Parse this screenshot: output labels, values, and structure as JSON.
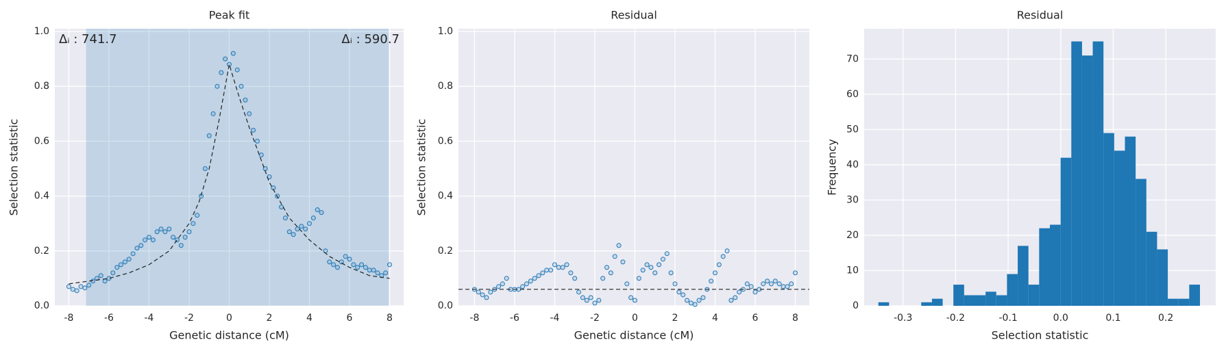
{
  "chart_data": [
    {
      "type": "scatter",
      "title": "Peak fit",
      "xlabel": "Genetic distance (cM)",
      "ylabel": "Selection statistic",
      "color": "#1f77b4",
      "xlim": [
        -8.7,
        8.7
      ],
      "ylim": [
        0,
        1.01
      ],
      "xticks": [
        -8,
        -6,
        -4,
        -2,
        0,
        2,
        4,
        6,
        8
      ],
      "yticks": [
        {
          "value": 0,
          "label": "0.0"
        },
        0.2,
        0.4,
        0.6,
        0.8,
        {
          "value": 1,
          "label": "1.0"
        }
      ],
      "grid": true,
      "span": [
        -7.14,
        7.96
      ],
      "annotations": [
        "Δᵢ : 741.7",
        "Δᵢ : 590.7"
      ],
      "x": [
        -8,
        -7.8,
        -7.6,
        -7.4,
        -7.2,
        -7,
        -6.8,
        -6.6,
        -6.4,
        -6.2,
        -6,
        -5.8,
        -5.6,
        -5.4,
        -5.2,
        -5,
        -4.8,
        -4.6,
        -4.4,
        -4.2,
        -4,
        -3.8,
        -3.6,
        -3.4,
        -3.2,
        -3,
        -2.8,
        -2.6,
        -2.4,
        -2.2,
        -2,
        -1.8,
        -1.6,
        -1.4,
        -1.2,
        -1,
        -0.8,
        -0.6,
        -0.4,
        -0.2,
        0,
        0.2,
        0.4,
        0.6,
        0.8,
        1,
        1.2,
        1.4,
        1.6,
        1.8,
        2,
        2.2,
        2.4,
        2.6,
        2.8,
        3,
        3.2,
        3.4,
        3.6,
        3.8,
        4,
        4.2,
        4.4,
        4.6,
        4.8,
        5,
        5.2,
        5.4,
        5.6,
        5.8,
        6,
        6.2,
        6.4,
        6.6,
        6.8,
        7,
        7.2,
        7.4,
        7.6,
        7.8,
        8
      ],
      "values": [
        0.07,
        0.06,
        0.055,
        0.07,
        0.065,
        0.075,
        0.09,
        0.1,
        0.11,
        0.09,
        0.1,
        0.12,
        0.14,
        0.15,
        0.16,
        0.17,
        0.19,
        0.21,
        0.22,
        0.24,
        0.25,
        0.24,
        0.27,
        0.28,
        0.27,
        0.28,
        0.25,
        0.24,
        0.22,
        0.25,
        0.27,
        0.3,
        0.33,
        0.4,
        0.5,
        0.62,
        0.7,
        0.8,
        0.85,
        0.9,
        0.88,
        0.92,
        0.86,
        0.8,
        0.75,
        0.7,
        0.64,
        0.6,
        0.55,
        0.5,
        0.47,
        0.43,
        0.4,
        0.36,
        0.32,
        0.27,
        0.26,
        0.28,
        0.29,
        0.28,
        0.3,
        0.32,
        0.35,
        0.34,
        0.2,
        0.16,
        0.15,
        0.14,
        0.16,
        0.18,
        0.17,
        0.15,
        0.14,
        0.15,
        0.14,
        0.13,
        0.13,
        0.12,
        0.11,
        0.12,
        0.15
      ],
      "fit": {
        "x": [
          -8,
          -7,
          -6,
          -5,
          -4,
          -3,
          -2,
          -1.5,
          -1,
          -0.5,
          0,
          0.5,
          1,
          1.5,
          2,
          3,
          4,
          5,
          6,
          7,
          8
        ],
        "values": [
          0.08,
          0.09,
          0.1,
          0.12,
          0.15,
          0.2,
          0.3,
          0.38,
          0.5,
          0.68,
          0.88,
          0.76,
          0.65,
          0.55,
          0.45,
          0.32,
          0.24,
          0.18,
          0.14,
          0.11,
          0.1
        ]
      }
    },
    {
      "type": "scatter",
      "title": "Residual",
      "xlabel": "Genetic distance (cM)",
      "ylabel": "Selection statistic",
      "color": "#1f77b4",
      "xlim": [
        -8.8,
        8.7
      ],
      "ylim": [
        0,
        1.01
      ],
      "xticks": [
        -8,
        -6,
        -4,
        -2,
        0,
        2,
        4,
        6,
        8
      ],
      "yticks": [
        {
          "value": 0,
          "label": "0.0"
        },
        0.2,
        0.4,
        0.6,
        0.8,
        {
          "value": 1,
          "label": "1.0"
        }
      ],
      "grid": true,
      "hline": 0.06,
      "x": [
        -8,
        -7.8,
        -7.6,
        -7.4,
        -7.2,
        -7,
        -6.8,
        -6.6,
        -6.4,
        -6.2,
        -6,
        -5.8,
        -5.6,
        -5.4,
        -5.2,
        -5,
        -4.8,
        -4.6,
        -4.4,
        -4.2,
        -4,
        -3.8,
        -3.6,
        -3.4,
        -3.2,
        -3,
        -2.8,
        -2.6,
        -2.4,
        -2.2,
        -2,
        -1.8,
        -1.6,
        -1.4,
        -1.2,
        -1,
        -0.8,
        -0.6,
        -0.4,
        -0.2,
        0,
        0.2,
        0.4,
        0.6,
        0.8,
        1,
        1.2,
        1.4,
        1.6,
        1.8,
        2,
        2.2,
        2.4,
        2.6,
        2.8,
        3,
        3.2,
        3.4,
        3.6,
        3.8,
        4,
        4.2,
        4.4,
        4.6,
        4.8,
        5,
        5.2,
        5.4,
        5.6,
        5.8,
        6,
        6.2,
        6.4,
        6.6,
        6.8,
        7,
        7.2,
        7.4,
        7.6,
        7.8,
        8
      ],
      "values": [
        0.06,
        0.05,
        0.04,
        0.03,
        0.05,
        0.06,
        0.07,
        0.08,
        0.1,
        0.06,
        0.06,
        0.06,
        0.07,
        0.08,
        0.09,
        0.1,
        0.11,
        0.12,
        0.13,
        0.13,
        0.15,
        0.14,
        0.14,
        0.15,
        0.12,
        0.1,
        0.05,
        0.03,
        0.02,
        0.03,
        0.01,
        0.02,
        0.1,
        0.14,
        0.12,
        0.18,
        0.22,
        0.16,
        0.08,
        0.03,
        0.02,
        0.1,
        0.13,
        0.15,
        0.14,
        0.12,
        0.15,
        0.17,
        0.19,
        0.12,
        0.08,
        0.05,
        0.04,
        0.02,
        0.01,
        0.005,
        0.02,
        0.03,
        0.06,
        0.09,
        0.12,
        0.15,
        0.18,
        0.2,
        0.02,
        0.03,
        0.05,
        0.06,
        0.08,
        0.07,
        0.05,
        0.06,
        0.08,
        0.09,
        0.08,
        0.09,
        0.08,
        0.07,
        0.07,
        0.08,
        0.12
      ]
    },
    {
      "type": "histogram",
      "title": "Residual",
      "xlabel": "Selection statistic",
      "ylabel": "Frequency",
      "color": "#1f77b4",
      "xlim": [
        -0.374,
        0.295
      ],
      "ylim": [
        0,
        78.6
      ],
      "xticks": [
        -0.3,
        -0.2,
        -0.1,
        {
          "value": 0,
          "label": "0.0"
        },
        0.1,
        0.2
      ],
      "yticks": [
        0,
        10,
        20,
        30,
        40,
        50,
        60,
        70
      ],
      "grid": true,
      "bins": [
        -0.347,
        -0.3266,
        -0.3062,
        -0.2858,
        -0.2654,
        -0.245,
        -0.2246,
        -0.2042,
        -0.1838,
        -0.1634,
        -0.143,
        -0.1226,
        -0.1022,
        -0.0818,
        -0.0614,
        -0.041,
        -0.0206,
        -0.0002,
        0.0202,
        0.0406,
        0.061,
        0.0814,
        0.1018,
        0.1222,
        0.1426,
        0.163,
        0.1834,
        0.2038,
        0.2242,
        0.2446,
        0.265
      ],
      "values": [
        1,
        0,
        0,
        0,
        1,
        2,
        0,
        6,
        3,
        3,
        4,
        3,
        9,
        17,
        6,
        22,
        23,
        42,
        75,
        71,
        75,
        49,
        44,
        48,
        36,
        21,
        16,
        2,
        2,
        6
      ]
    }
  ]
}
